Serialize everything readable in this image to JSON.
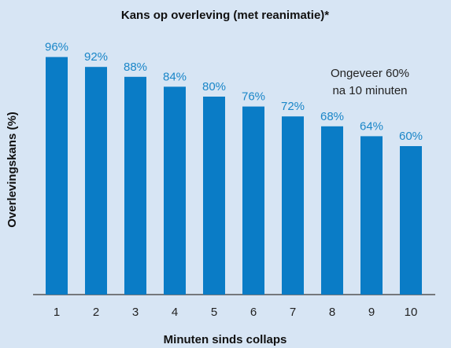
{
  "chart_data": {
    "type": "bar",
    "title": "Kans op overleving (met reanimatie)*",
    "xlabel": "Minuten sinds collaps",
    "ylabel": "Overlevingskans (%)",
    "annotation": [
      "Ongeveer 60%",
      "na 10 minuten"
    ],
    "categories": [
      "1",
      "2",
      "3",
      "4",
      "5",
      "6",
      "7",
      "8",
      "9",
      "10"
    ],
    "values": [
      96,
      92,
      88,
      84,
      80,
      76,
      72,
      68,
      64,
      60
    ],
    "value_labels": [
      "96%",
      "92%",
      "88%",
      "84%",
      "80%",
      "76%",
      "72%",
      "68%",
      "64%",
      "60%"
    ],
    "color": "#0a7cc6",
    "ylim": [
      0,
      100
    ]
  }
}
